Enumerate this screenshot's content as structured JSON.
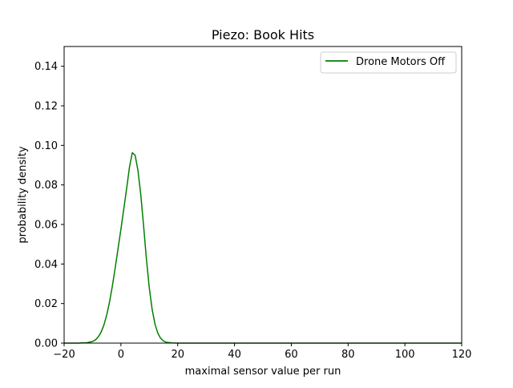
{
  "chart_data": {
    "type": "line",
    "title": "Piezo: Book Hits",
    "xlabel": "maximal sensor value per run",
    "ylabel": "probability density",
    "xlim": [
      -20,
      120
    ],
    "ylim": [
      0,
      0.15
    ],
    "xticks": [
      -20,
      0,
      20,
      40,
      60,
      80,
      100,
      120
    ],
    "yticks": [
      0.0,
      0.02,
      0.04,
      0.06,
      0.08,
      0.1,
      0.12,
      0.14
    ],
    "xtick_labels": [
      "−20",
      "0",
      "20",
      "40",
      "60",
      "80",
      "100",
      "120"
    ],
    "ytick_labels": [
      "0.00",
      "0.02",
      "0.04",
      "0.06",
      "0.08",
      "0.10",
      "0.12",
      "0.14"
    ],
    "grid": false,
    "legend_position": "top-right",
    "series": [
      {
        "name": "Drone Motors Off",
        "color": "#008000",
        "x": [
          -20,
          -15,
          -12,
          -10,
          -9,
          -8,
          -7,
          -6,
          -5,
          -4,
          -3,
          -2,
          -1,
          0,
          1,
          2,
          3,
          4,
          5,
          6,
          7,
          8,
          9,
          10,
          11,
          12,
          13,
          14,
          15,
          16,
          18,
          20,
          25,
          40,
          60,
          80,
          100,
          120
        ],
        "y": [
          0,
          0,
          0.0002,
          0.0008,
          0.0016,
          0.0031,
          0.0055,
          0.0091,
          0.0142,
          0.0209,
          0.029,
          0.0382,
          0.0479,
          0.0576,
          0.0678,
          0.078,
          0.0889,
          0.0963,
          0.095,
          0.0873,
          0.075,
          0.059,
          0.0422,
          0.0278,
          0.017,
          0.0096,
          0.005,
          0.0024,
          0.0011,
          0.0004,
          0.0001,
          0,
          0,
          0,
          0,
          0,
          0,
          0
        ]
      }
    ]
  }
}
